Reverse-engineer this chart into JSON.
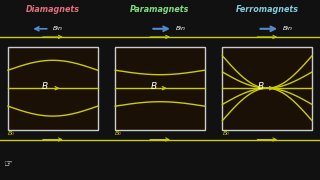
{
  "bg_color": "#111111",
  "sections": [
    {
      "type": "diamagnet",
      "title": "Diamagnets",
      "title_color": "#e07080"
    },
    {
      "type": "paramagnet",
      "title": "Paramagnets",
      "title_color": "#80dd80"
    },
    {
      "type": "ferromagnet",
      "title": "Ferromagnets",
      "title_color": "#80ccdd"
    }
  ],
  "label_Bin": "Bin",
  "label_B": "B",
  "label_B0": "B₀",
  "field_color": "#cccc00",
  "box_edge_color": "#cccccc",
  "box_face_color": "#1a1005",
  "arrow_color": "#5588cc",
  "figsize": [
    3.2,
    1.8
  ],
  "dpi": 100
}
